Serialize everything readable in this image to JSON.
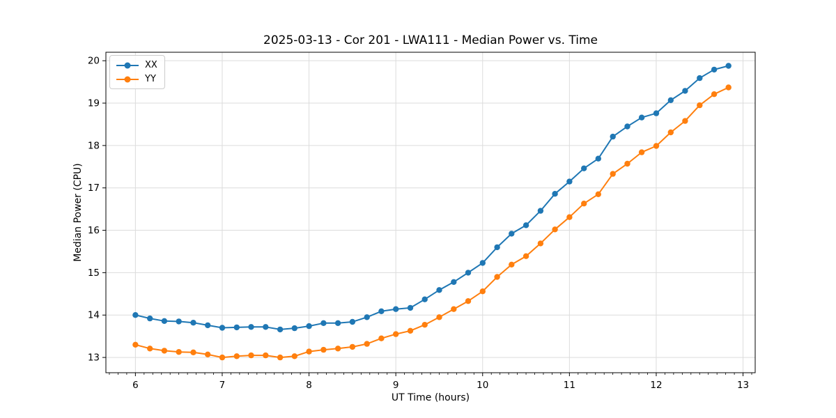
{
  "chart_data": {
    "type": "line",
    "title": "2025-03-13 - Cor 201 - LWA111 - Median Power vs. Time",
    "xlabel": "UT Time (hours)",
    "ylabel": "Median Power (CPU)",
    "xlim": [
      5.66,
      13.14
    ],
    "ylim": [
      12.64,
      20.2
    ],
    "xticks": [
      6,
      7,
      8,
      9,
      10,
      11,
      12,
      13
    ],
    "yticks": [
      13,
      14,
      15,
      16,
      17,
      18,
      19,
      20
    ],
    "x_minor_step": 0.1,
    "grid": true,
    "grid_color": "#dcdcdc",
    "legend_position": "upper-left",
    "x": [
      6.0,
      6.167,
      6.333,
      6.5,
      6.667,
      6.833,
      7.0,
      7.167,
      7.333,
      7.5,
      7.667,
      7.833,
      8.0,
      8.167,
      8.333,
      8.5,
      8.667,
      8.833,
      9.0,
      9.167,
      9.333,
      9.5,
      9.667,
      9.833,
      10.0,
      10.167,
      10.333,
      10.5,
      10.667,
      10.833,
      11.0,
      11.167,
      11.333,
      11.5,
      11.667,
      11.833,
      12.0,
      12.167,
      12.333,
      12.5,
      12.667,
      12.833
    ],
    "series": [
      {
        "name": "XX",
        "color": "#1f77b4",
        "values": [
          14.0,
          13.92,
          13.86,
          13.85,
          13.82,
          13.76,
          13.7,
          13.71,
          13.72,
          13.72,
          13.66,
          13.69,
          13.74,
          13.81,
          13.81,
          13.84,
          13.95,
          14.09,
          14.14,
          14.17,
          14.37,
          14.59,
          14.78,
          15.0,
          15.23,
          15.6,
          15.92,
          16.12,
          16.46,
          16.86,
          17.15,
          17.46,
          17.69,
          18.21,
          18.45,
          18.66,
          18.76,
          19.07,
          19.29,
          19.59,
          19.79,
          19.88
        ]
      },
      {
        "name": "YY",
        "color": "#ff7f0e",
        "values": [
          13.3,
          13.21,
          13.16,
          13.13,
          13.12,
          13.07,
          13.0,
          13.03,
          13.05,
          13.05,
          13.0,
          13.03,
          13.14,
          13.18,
          13.21,
          13.25,
          13.32,
          13.45,
          13.55,
          13.63,
          13.77,
          13.95,
          14.14,
          14.33,
          14.56,
          14.9,
          15.19,
          15.39,
          15.69,
          16.02,
          16.31,
          16.63,
          16.85,
          17.33,
          17.57,
          17.84,
          17.99,
          18.31,
          18.58,
          18.95,
          19.21,
          19.37
        ]
      }
    ]
  }
}
